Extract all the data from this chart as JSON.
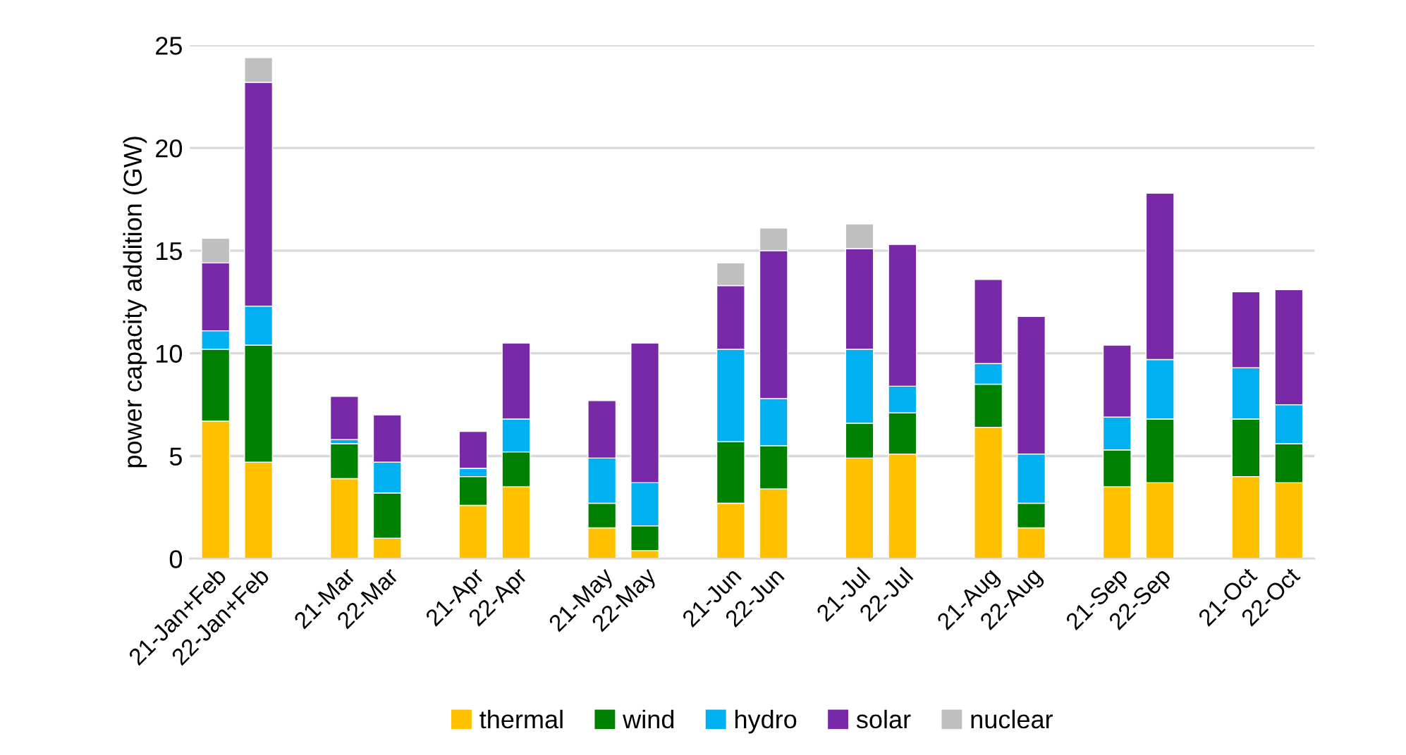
{
  "chart_data": {
    "type": "bar",
    "stacked": true,
    "ylabel": "power capacity addition (GW)",
    "categories": [
      "21-Jan+Feb",
      "22-Jan+Feb",
      null,
      "21-Mar",
      "22-Mar",
      null,
      "21-Apr",
      "22-Apr",
      null,
      "21-May",
      "22-May",
      null,
      "21-Jun",
      "22-Jun",
      null,
      "21-Jul",
      "22-Jul",
      null,
      "21-Aug",
      "22-Aug",
      null,
      "21-Sep",
      "22-Sep",
      null,
      "21-Oct",
      "22-Oct"
    ],
    "series": [
      {
        "name": "thermal",
        "color": "#ffc000",
        "values": [
          6.7,
          4.7,
          null,
          3.9,
          1.0,
          null,
          2.6,
          3.5,
          null,
          1.5,
          0.4,
          null,
          2.7,
          3.4,
          null,
          4.9,
          5.1,
          null,
          6.4,
          1.5,
          null,
          3.5,
          3.7,
          null,
          4.0,
          3.7
        ]
      },
      {
        "name": "wind",
        "color": "#008000",
        "values": [
          3.5,
          5.7,
          null,
          1.7,
          2.2,
          null,
          1.4,
          1.7,
          null,
          1.2,
          1.2,
          null,
          3.0,
          2.1,
          null,
          1.7,
          2.0,
          null,
          2.1,
          1.2,
          null,
          1.8,
          3.1,
          null,
          2.8,
          1.9
        ]
      },
      {
        "name": "hydro",
        "color": "#00b0f0",
        "values": [
          0.9,
          1.9,
          null,
          0.2,
          1.5,
          null,
          0.4,
          1.6,
          null,
          2.2,
          2.1,
          null,
          4.5,
          2.3,
          null,
          3.6,
          1.3,
          null,
          1.0,
          2.4,
          null,
          1.6,
          2.9,
          null,
          2.5,
          1.9
        ]
      },
      {
        "name": "solar",
        "color": "#7829a8",
        "values": [
          3.3,
          10.9,
          null,
          2.1,
          2.3,
          null,
          1.8,
          3.7,
          null,
          2.8,
          6.8,
          null,
          3.1,
          7.2,
          null,
          4.9,
          6.9,
          null,
          4.1,
          6.7,
          null,
          3.5,
          8.1,
          null,
          3.7,
          5.6
        ]
      },
      {
        "name": "nuclear",
        "color": "#bfbfbf",
        "values": [
          1.2,
          1.2,
          null,
          null,
          null,
          null,
          null,
          null,
          null,
          null,
          null,
          null,
          1.1,
          1.1,
          null,
          1.2,
          null,
          null,
          null,
          null,
          null,
          null,
          null,
          null,
          null,
          null
        ]
      }
    ],
    "ylim": [
      0,
      25
    ],
    "yticks": [
      0,
      5,
      10,
      15,
      20,
      25
    ],
    "grid": "y",
    "legend": "bottom"
  }
}
